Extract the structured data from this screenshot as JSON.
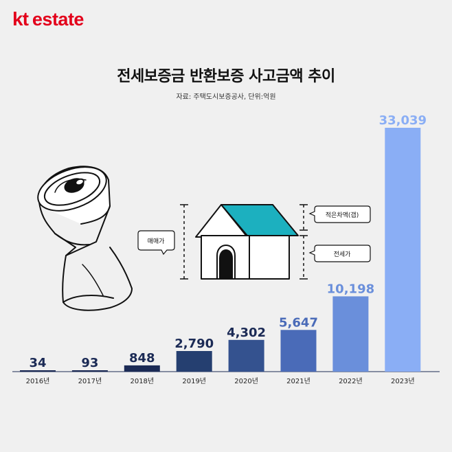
{
  "brand": {
    "kt": "kt",
    "estate": "estate",
    "color": "#e3001b"
  },
  "header": {
    "title": "전세보증금 반환보증 사고금액 추이",
    "source": "자료: 주택도시보증공사, 단위:억원"
  },
  "illustration": {
    "label_sale_price": "매매가",
    "label_small_gap": "적은차액(갭)",
    "label_jeonse": "전세가",
    "roof_color": "#1cb0bf"
  },
  "chart_data": {
    "type": "bar",
    "categories": [
      "2016년",
      "2017년",
      "2018년",
      "2019년",
      "2020년",
      "2021년",
      "2022년",
      "2023년"
    ],
    "values": [
      34,
      93,
      848,
      2790,
      4302,
      5647,
      10198,
      33039
    ],
    "value_labels": [
      "34",
      "93",
      "848",
      "2,790",
      "4,302",
      "5,647",
      "10,198",
      "33,039"
    ],
    "bar_colors": [
      "#1b2a55",
      "#1b2a55",
      "#1b2a55",
      "#253f70",
      "#34528f",
      "#4a6bb8",
      "#6a8fdb",
      "#8aaef5"
    ],
    "label_colors": [
      "#1b2a55",
      "#1b2a55",
      "#1b2a55",
      "#1b2a55",
      "#1b2a55",
      "#4a6bb8",
      "#6a8fdb",
      "#8aaef5"
    ],
    "title": "전세보증금 반환보증 사고금액 추이",
    "xlabel": "",
    "ylabel": "",
    "ylim": [
      0,
      33039
    ]
  }
}
